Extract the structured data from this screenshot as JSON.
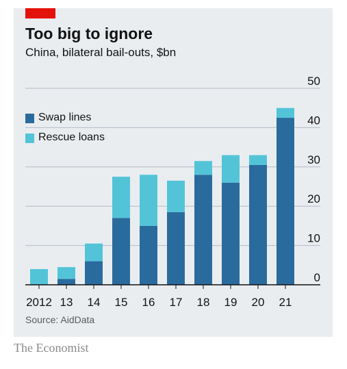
{
  "header": {
    "title": "Too big to ignore",
    "subtitle": "China, bilateral bail-outs, $bn"
  },
  "footer": {
    "source": "Source: AidData",
    "brand": "The Economist"
  },
  "colors": {
    "panel": "#e9edf0",
    "accent": "#e3120b",
    "swap_lines": "#2a6b9e",
    "rescue_loans": "#53c4d8",
    "gridline": "#b4bcc4",
    "axis": "#121212"
  },
  "chart_data": {
    "type": "bar",
    "stacked": true,
    "categories": [
      "2012",
      "13",
      "14",
      "15",
      "16",
      "17",
      "18",
      "19",
      "20",
      "21"
    ],
    "series": [
      {
        "name": "Swap lines",
        "values": [
          0,
          1.5,
          6,
          17,
          15,
          18.5,
          28,
          26,
          30.5,
          42.5
        ]
      },
      {
        "name": "Rescue loans",
        "values": [
          4,
          3,
          4.5,
          10.5,
          13,
          8,
          3.5,
          7,
          2.5,
          2.5
        ]
      }
    ],
    "ylim": [
      0,
      50
    ],
    "yticks": [
      "0",
      "10",
      "20",
      "30",
      "40",
      "50"
    ],
    "y_axis_side": "right",
    "grid": true,
    "legend_position": "top-left"
  }
}
